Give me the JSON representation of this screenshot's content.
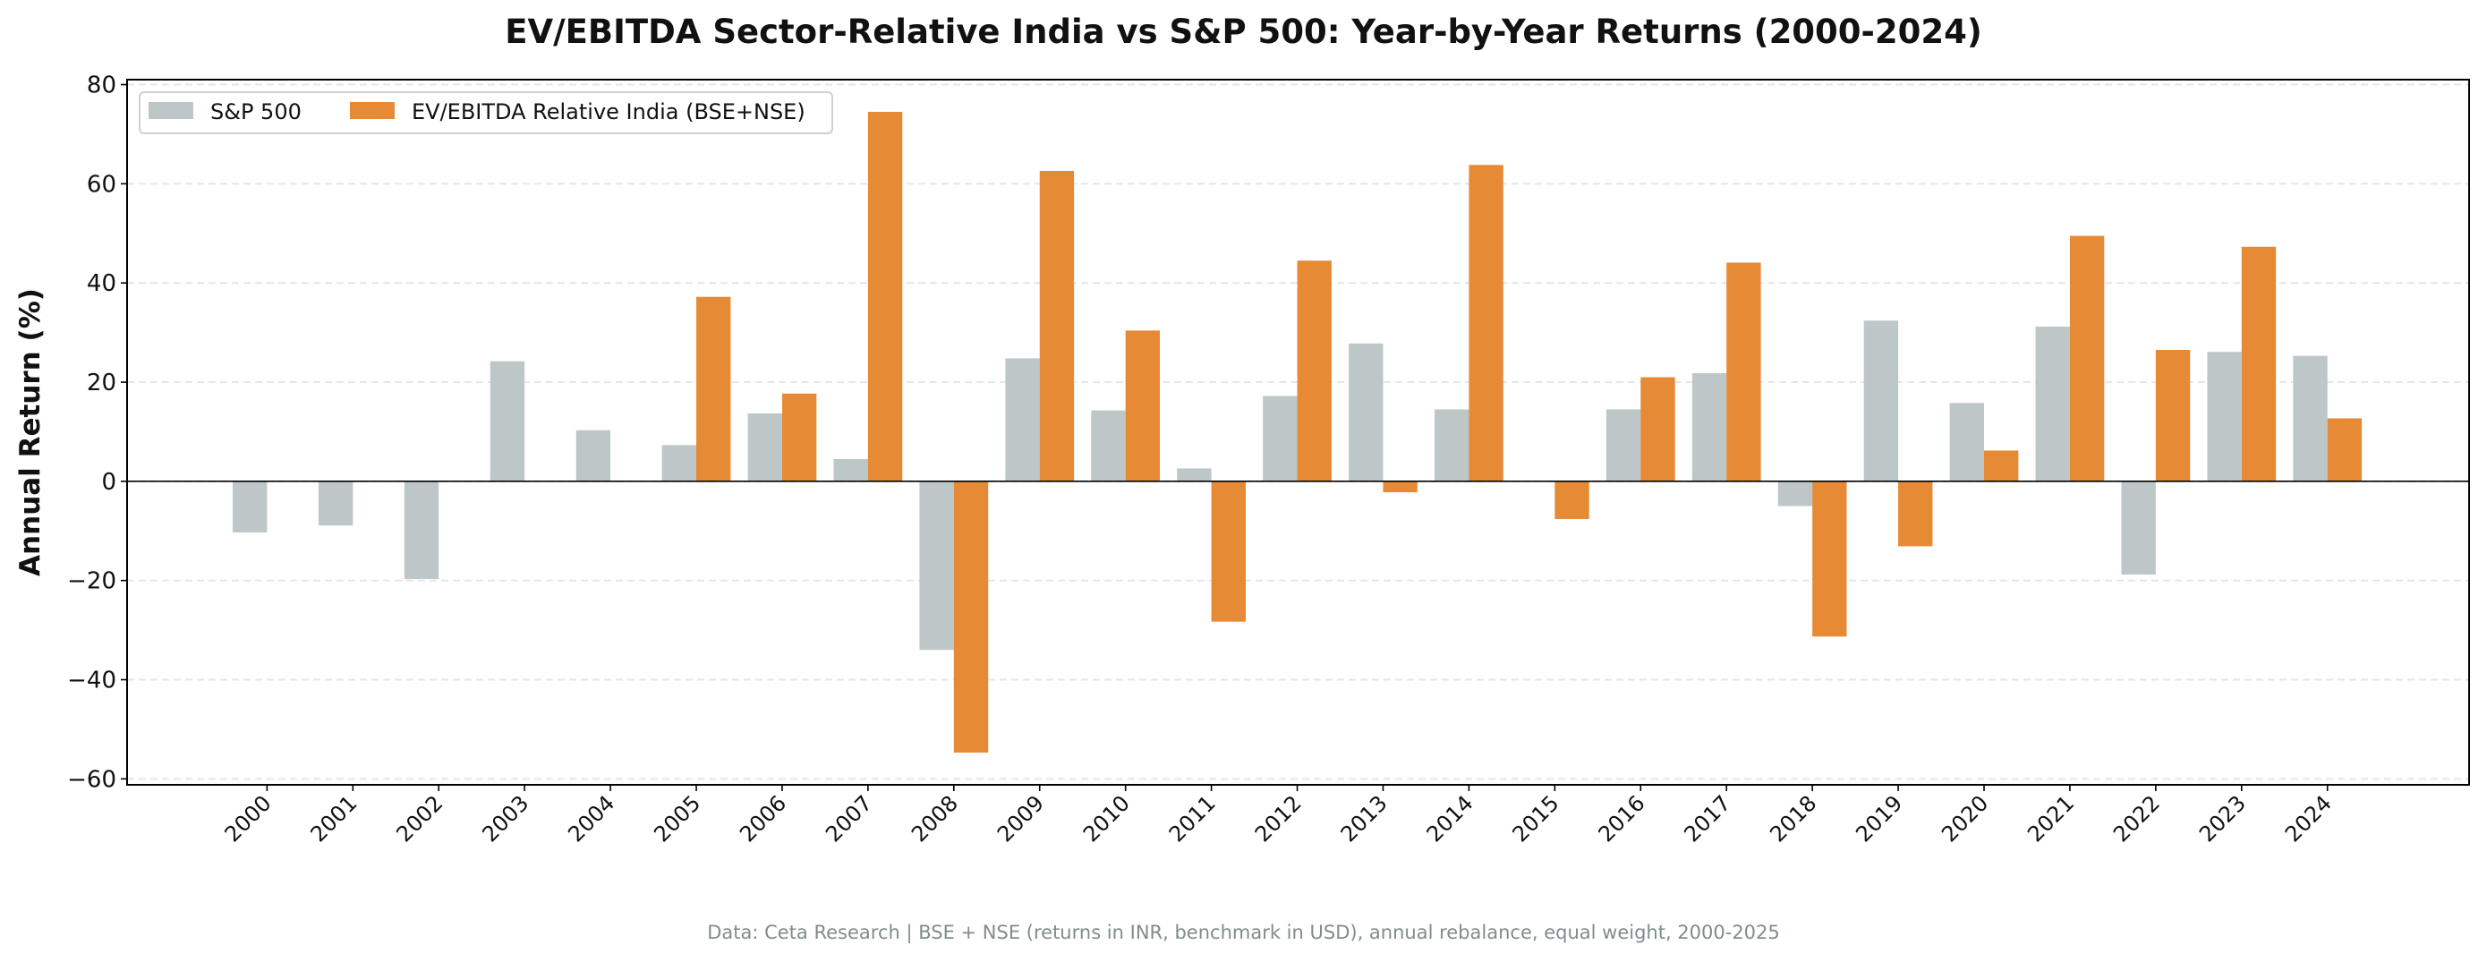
{
  "chart_data": {
    "type": "bar",
    "title": "EV/EBITDA Sector-Relative India vs S&P 500: Year-by-Year Returns (2000-2024)",
    "xlabel": "",
    "ylabel": "Annual Return (%)",
    "ylim": [
      -61.2,
      81
    ],
    "yticks": [
      -60,
      -40,
      -20,
      0,
      20,
      40,
      60,
      80
    ],
    "grid": true,
    "legend_position": "top-left",
    "categories": [
      "2000",
      "2001",
      "2002",
      "2003",
      "2004",
      "2005",
      "2006",
      "2007",
      "2008",
      "2009",
      "2010",
      "2011",
      "2012",
      "2013",
      "2014",
      "2015",
      "2016",
      "2017",
      "2018",
      "2019",
      "2020",
      "2021",
      "2022",
      "2023",
      "2024"
    ],
    "series": [
      {
        "name": "S&P 500",
        "color": "#bdc7c7",
        "values": [
          -10.3,
          -8.9,
          -19.7,
          24.2,
          10.3,
          7.3,
          13.7,
          4.5,
          -34.0,
          24.8,
          14.3,
          2.6,
          17.2,
          27.8,
          14.5,
          0.0,
          14.5,
          21.8,
          -5.0,
          32.4,
          15.8,
          31.2,
          -18.8,
          26.1,
          25.3
        ]
      },
      {
        "name": "EV/EBITDA Relative India (BSE+NSE)",
        "color": "#e68a35",
        "values": [
          null,
          null,
          null,
          null,
          null,
          37.2,
          17.7,
          74.5,
          -54.7,
          62.6,
          30.4,
          -28.3,
          44.5,
          -2.2,
          63.8,
          -7.6,
          21.0,
          44.1,
          -31.3,
          -13.1,
          6.2,
          49.5,
          26.5,
          47.3,
          12.7
        ]
      }
    ]
  },
  "footer": "Data: Ceta Research | BSE + NSE (returns in INR, benchmark in USD), annual rebalance, equal weight, 2000-2025"
}
